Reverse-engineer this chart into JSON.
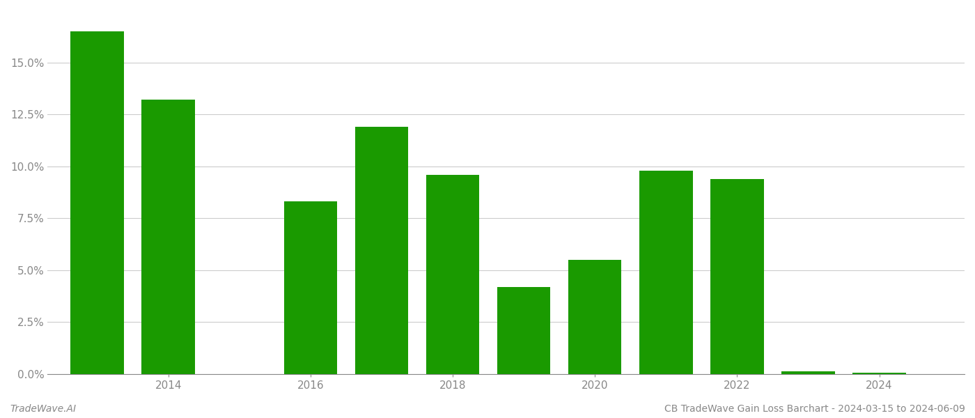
{
  "years": [
    2013,
    2014,
    2015,
    2016,
    2017,
    2018,
    2019,
    2020,
    2021,
    2022,
    2023,
    2024
  ],
  "values": [
    0.165,
    0.132,
    0.0,
    0.083,
    0.119,
    0.096,
    0.042,
    0.055,
    0.098,
    0.094,
    0.0012,
    0.0008
  ],
  "bar_color": "#1a9a00",
  "background_color": "#ffffff",
  "grid_color": "#cccccc",
  "axis_color": "#888888",
  "footer_left": "TradeWave.AI",
  "footer_right": "CB TradeWave Gain Loss Barchart - 2024-03-15 to 2024-06-09",
  "ylim": [
    0,
    0.175
  ],
  "yticks": [
    0.0,
    0.025,
    0.05,
    0.075,
    0.1,
    0.125,
    0.15
  ],
  "ytick_labels": [
    "0.0%",
    "2.5%",
    "5.0%",
    "7.5%",
    "10.0%",
    "12.5%",
    "15.0%"
  ],
  "xtick_positions": [
    2014,
    2016,
    2018,
    2020,
    2022,
    2024
  ],
  "bar_width": 0.75,
  "figsize": [
    14.0,
    6.0
  ],
  "dpi": 100
}
